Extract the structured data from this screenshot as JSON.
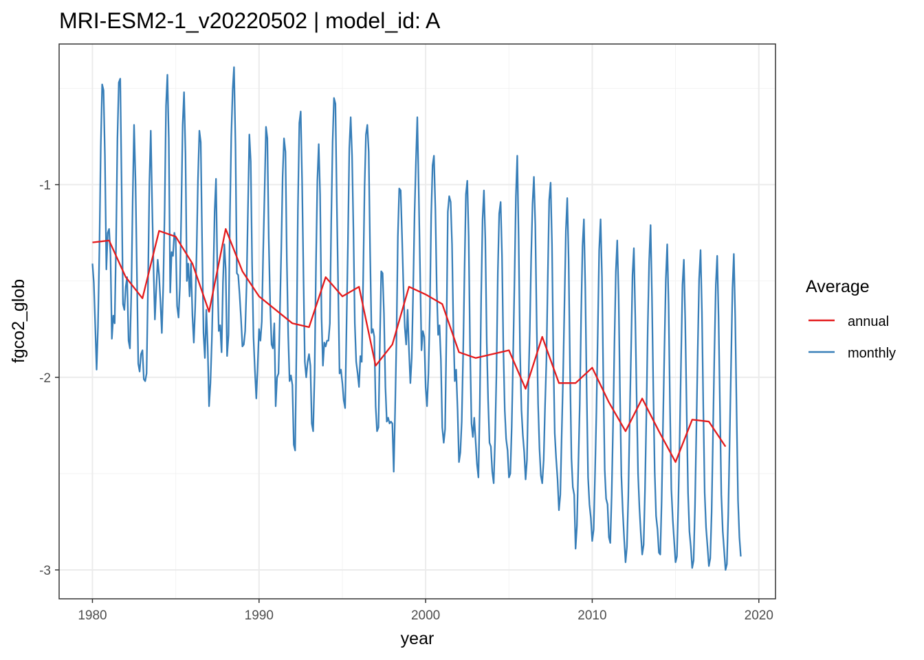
{
  "chart_data": {
    "type": "line",
    "title": "MRI-ESM2-1_v20220502 | model_id: A",
    "xlabel": "year",
    "ylabel": "fgco2_glob",
    "xlim": [
      1978,
      2021
    ],
    "ylim": [
      -3.15,
      -0.27
    ],
    "x_ticks": [
      1980,
      1990,
      2000,
      2010,
      2020
    ],
    "y_ticks": [
      -3,
      -2,
      -1
    ],
    "grid": true,
    "legend": {
      "title": "Average",
      "placement": "right",
      "entries": [
        "annual",
        "monthly"
      ]
    },
    "series": [
      {
        "name": "annual",
        "color": "#e41a1c",
        "x": [
          1980,
          1981,
          1982,
          1983,
          1984,
          1985,
          1986,
          1987,
          1988,
          1989,
          1990,
          1991,
          1992,
          1993,
          1994,
          1995,
          1996,
          1997,
          1998,
          1999,
          2000,
          2001,
          2002,
          2003,
          2004,
          2005,
          2006,
          2007,
          2008,
          2009,
          2010,
          2011,
          2012,
          2013,
          2014,
          2015,
          2016,
          2017,
          2018
        ],
        "y": [
          -1.3,
          -1.29,
          -1.48,
          -1.59,
          -1.24,
          -1.27,
          -1.41,
          -1.66,
          -1.23,
          -1.45,
          -1.58,
          -1.65,
          -1.72,
          -1.74,
          -1.48,
          -1.58,
          -1.53,
          -1.94,
          -1.83,
          -1.53,
          -1.57,
          -1.62,
          -1.87,
          -1.9,
          -1.88,
          -1.86,
          -2.06,
          -1.79,
          -2.03,
          -2.03,
          -1.95,
          -2.13,
          -2.28,
          -2.11,
          -2.28,
          -2.44,
          -2.22,
          -2.23,
          -2.36
        ]
      },
      {
        "name": "monthly",
        "color": "#377eb8",
        "x_start": 1980.0,
        "x_step": 0.0833333,
        "y": [
          -1.41,
          -1.51,
          -1.73,
          -1.96,
          -1.74,
          -1.33,
          -0.8,
          -0.48,
          -0.51,
          -0.85,
          -1.44,
          -1.25,
          -1.23,
          -1.36,
          -1.8,
          -1.68,
          -1.72,
          -1.31,
          -0.76,
          -0.47,
          -0.45,
          -1.0,
          -1.62,
          -1.65,
          -1.53,
          -1.48,
          -1.81,
          -1.85,
          -1.56,
          -1.08,
          -0.69,
          -0.98,
          -1.45,
          -1.93,
          -1.97,
          -1.88,
          -1.86,
          -2.01,
          -2.02,
          -1.98,
          -1.54,
          -0.99,
          -0.72,
          -1.1,
          -1.43,
          -1.7,
          -1.53,
          -1.39,
          -1.47,
          -1.61,
          -1.77,
          -1.52,
          -1.13,
          -0.59,
          -0.43,
          -0.76,
          -1.56,
          -1.35,
          -1.37,
          -1.25,
          -1.29,
          -1.63,
          -1.69,
          -1.53,
          -1.14,
          -0.69,
          -0.52,
          -0.84,
          -1.5,
          -1.41,
          -1.58,
          -1.41,
          -1.68,
          -1.82,
          -1.64,
          -1.36,
          -0.98,
          -0.72,
          -0.78,
          -1.3,
          -1.77,
          -1.9,
          -1.65,
          -1.84,
          -2.15,
          -2.03,
          -1.81,
          -1.49,
          -1.14,
          -0.97,
          -1.45,
          -1.76,
          -1.73,
          -1.87,
          -1.51,
          -1.31,
          -1.44,
          -1.89,
          -1.78,
          -1.17,
          -0.75,
          -0.51,
          -0.39,
          -0.79,
          -1.46,
          -1.47,
          -1.57,
          -1.69,
          -1.84,
          -1.83,
          -1.76,
          -1.53,
          -1.14,
          -0.74,
          -0.88,
          -1.41,
          -1.79,
          -1.96,
          -2.11,
          -1.94,
          -1.75,
          -1.81,
          -1.71,
          -1.35,
          -1.03,
          -0.7,
          -0.76,
          -1.28,
          -1.61,
          -1.83,
          -1.85,
          -1.72,
          -2.15,
          -2.0,
          -1.98,
          -1.67,
          -1.34,
          -0.96,
          -0.76,
          -0.83,
          -1.39,
          -1.78,
          -2.02,
          -1.99,
          -2.04,
          -2.35,
          -2.38,
          -1.83,
          -1.13,
          -0.68,
          -0.62,
          -0.98,
          -1.47,
          -1.92,
          -2.0,
          -1.92,
          -1.88,
          -1.94,
          -2.24,
          -2.28,
          -1.98,
          -1.42,
          -0.98,
          -0.79,
          -1.05,
          -1.69,
          -1.94,
          -1.82,
          -1.84,
          -1.81,
          -1.81,
          -1.72,
          -1.19,
          -0.78,
          -0.55,
          -0.58,
          -1.09,
          -1.54,
          -1.98,
          -1.96,
          -2.03,
          -2.12,
          -2.16,
          -1.74,
          -1.32,
          -0.81,
          -0.65,
          -0.85,
          -1.24,
          -1.72,
          -1.92,
          -1.98,
          -2.05,
          -1.89,
          -1.92,
          -1.5,
          -1.01,
          -0.74,
          -0.69,
          -0.83,
          -1.34,
          -1.77,
          -1.75,
          -1.79,
          -2.15,
          -2.28,
          -2.26,
          -1.83,
          -1.45,
          -1.46,
          -1.67,
          -2.05,
          -2.23,
          -2.21,
          -2.24,
          -2.23,
          -2.24,
          -2.49,
          -2.17,
          -1.8,
          -1.27,
          -1.02,
          -1.03,
          -1.27,
          -1.53,
          -1.74,
          -1.83,
          -1.65,
          -1.86,
          -2.03,
          -1.9,
          -1.56,
          -1.15,
          -0.88,
          -0.65,
          -1.02,
          -1.44,
          -1.86,
          -1.76,
          -1.79,
          -2.05,
          -2.15,
          -1.98,
          -1.66,
          -1.16,
          -0.9,
          -0.85,
          -1.13,
          -1.55,
          -1.78,
          -1.73,
          -1.91,
          -2.26,
          -2.34,
          -2.27,
          -1.77,
          -1.14,
          -1.06,
          -1.09,
          -1.31,
          -1.75,
          -2.02,
          -1.96,
          -2.17,
          -2.44,
          -2.39,
          -2.23,
          -1.89,
          -1.44,
          -1.05,
          -0.98,
          -1.27,
          -1.84,
          -2.24,
          -2.31,
          -2.21,
          -2.33,
          -2.45,
          -2.52,
          -2.14,
          -1.58,
          -1.18,
          -1.03,
          -1.28,
          -1.82,
          -2.12,
          -2.34,
          -2.36,
          -2.49,
          -2.55,
          -2.32,
          -1.98,
          -1.46,
          -1.15,
          -1.09,
          -1.37,
          -1.86,
          -2.17,
          -2.32,
          -2.38,
          -2.52,
          -2.5,
          -2.26,
          -1.9,
          -1.49,
          -1.06,
          -0.85,
          -1.28,
          -1.86,
          -2.17,
          -2.3,
          -2.39,
          -2.53,
          -2.43,
          -2.04,
          -1.76,
          -1.38,
          -1.1,
          -0.96,
          -1.21,
          -1.74,
          -2.14,
          -2.37,
          -2.51,
          -2.55,
          -2.43,
          -2.15,
          -1.91,
          -1.48,
          -1.08,
          -0.99,
          -1.31,
          -1.89,
          -2.29,
          -2.42,
          -2.53,
          -2.69,
          -2.61,
          -2.3,
          -2.0,
          -1.61,
          -1.24,
          -1.07,
          -1.39,
          -1.95,
          -2.42,
          -2.57,
          -2.61,
          -2.89,
          -2.77,
          -2.46,
          -2.14,
          -1.68,
          -1.32,
          -1.18,
          -1.53,
          -2.08,
          -2.52,
          -2.66,
          -2.73,
          -2.85,
          -2.79,
          -2.5,
          -2.18,
          -1.77,
          -1.34,
          -1.18,
          -1.48,
          -2.02,
          -2.48,
          -2.63,
          -2.66,
          -2.83,
          -2.86,
          -2.61,
          -2.25,
          -1.81,
          -1.45,
          -1.29,
          -1.57,
          -2.08,
          -2.51,
          -2.7,
          -2.84,
          -2.96,
          -2.88,
          -2.62,
          -2.2,
          -1.85,
          -1.47,
          -1.33,
          -1.68,
          -2.12,
          -2.5,
          -2.68,
          -2.81,
          -2.92,
          -2.87,
          -2.58,
          -2.19,
          -1.74,
          -1.4,
          -1.21,
          -1.58,
          -2.07,
          -2.49,
          -2.72,
          -2.79,
          -2.91,
          -2.92,
          -2.64,
          -2.24,
          -1.86,
          -1.49,
          -1.31,
          -1.62,
          -2.14,
          -2.58,
          -2.74,
          -2.85,
          -2.96,
          -2.93,
          -2.66,
          -2.3,
          -1.9,
          -1.52,
          -1.39,
          -1.71,
          -2.18,
          -2.6,
          -2.8,
          -2.88,
          -2.99,
          -2.95,
          -2.67,
          -2.27,
          -1.86,
          -1.49,
          -1.34,
          -1.66,
          -2.16,
          -2.6,
          -2.78,
          -2.88,
          -2.98,
          -2.94,
          -2.7,
          -2.29,
          -1.88,
          -1.52,
          -1.37,
          -1.69,
          -2.15,
          -2.61,
          -2.8,
          -2.9,
          -3.0,
          -2.97,
          -2.71,
          -2.31,
          -1.93,
          -1.54,
          -1.36,
          -1.69,
          -2.2,
          -2.64,
          -2.83,
          -2.93
        ]
      }
    ]
  }
}
